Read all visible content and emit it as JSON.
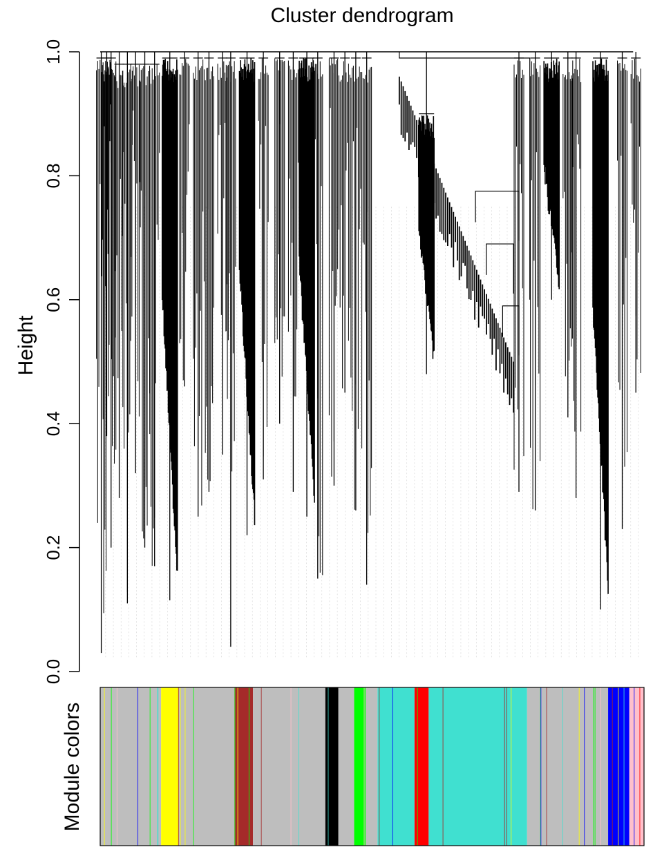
{
  "chart_data": {
    "type": "dendrogram",
    "title": "Cluster dendrogram",
    "ylabel": "Height",
    "color_bar_label": "Module colors",
    "ylim": [
      0,
      1
    ],
    "yticks": [
      "0.0",
      "0.2",
      "0.4",
      "0.6",
      "0.8",
      "1.0"
    ],
    "ytick_values": [
      0.0,
      0.2,
      0.4,
      0.6,
      0.8,
      1.0
    ],
    "module_colors": [
      {
        "color": "grey",
        "hex": "#bebebe",
        "from": 0.0,
        "to": 0.112
      },
      {
        "color": "yellow",
        "hex": "#ffff00",
        "from": 0.112,
        "to": 0.144
      },
      {
        "color": "grey",
        "hex": "#bebebe",
        "from": 0.144,
        "to": 0.247
      },
      {
        "color": "brown",
        "hex": "#a52a2a",
        "from": 0.247,
        "to": 0.281
      },
      {
        "color": "grey",
        "hex": "#bebebe",
        "from": 0.281,
        "to": 0.414
      },
      {
        "color": "black",
        "hex": "#000000",
        "from": 0.414,
        "to": 0.438
      },
      {
        "color": "grey",
        "hex": "#bebebe",
        "from": 0.438,
        "to": 0.467
      },
      {
        "color": "green",
        "hex": "#00ff00",
        "from": 0.467,
        "to": 0.488
      },
      {
        "color": "grey",
        "hex": "#bebebe",
        "from": 0.488,
        "to": 0.51
      },
      {
        "color": "turquoise",
        "hex": "#40e0d0",
        "from": 0.51,
        "to": 0.578
      },
      {
        "color": "red",
        "hex": "#ff0000",
        "from": 0.578,
        "to": 0.604
      },
      {
        "color": "turquoise",
        "hex": "#40e0d0",
        "from": 0.604,
        "to": 0.785
      },
      {
        "color": "grey",
        "hex": "#bebebe",
        "from": 0.785,
        "to": 0.934
      },
      {
        "color": "blue",
        "hex": "#0000ff",
        "from": 0.934,
        "to": 0.973
      },
      {
        "color": "pink",
        "hex": "#ffc0cb",
        "from": 0.973,
        "to": 1.0
      }
    ],
    "branches": [
      {
        "position": 0.002,
        "merge_height": 0.99,
        "min_height": 0.03,
        "dense": false
      },
      {
        "position": 0.012,
        "merge_height": 0.99,
        "min_height": 0.38,
        "dense": false
      },
      {
        "position": 0.02,
        "merge_height": 0.99,
        "min_height": 0.2,
        "dense": false
      },
      {
        "position": 0.035,
        "merge_height": 0.98,
        "min_height": 0.28,
        "dense": false
      },
      {
        "position": 0.05,
        "merge_height": 0.98,
        "min_height": 0.11,
        "dense": false
      },
      {
        "position": 0.065,
        "merge_height": 0.98,
        "min_height": 0.32,
        "dense": false
      },
      {
        "position": 0.082,
        "merge_height": 0.98,
        "min_height": 0.2,
        "dense": false
      },
      {
        "position": 0.1,
        "merge_height": 0.98,
        "min_height": 0.17,
        "dense": false
      },
      {
        "position": 0.128,
        "merge_height": 0.99,
        "min_height": 0.115,
        "dense": true
      },
      {
        "position": 0.155,
        "merge_height": 0.99,
        "min_height": 0.46,
        "dense": false
      },
      {
        "position": 0.18,
        "merge_height": 0.99,
        "min_height": 0.25,
        "dense": false
      },
      {
        "position": 0.2,
        "merge_height": 0.99,
        "min_height": 0.29,
        "dense": false
      },
      {
        "position": 0.225,
        "merge_height": 0.99,
        "min_height": 0.35,
        "dense": false
      },
      {
        "position": 0.24,
        "merge_height": 0.99,
        "min_height": 0.04,
        "dense": false
      },
      {
        "position": 0.27,
        "merge_height": 0.99,
        "min_height": 0.22,
        "dense": true
      },
      {
        "position": 0.3,
        "merge_height": 0.99,
        "min_height": 0.31,
        "dense": false
      },
      {
        "position": 0.33,
        "merge_height": 0.99,
        "min_height": 0.4,
        "dense": false
      },
      {
        "position": 0.355,
        "merge_height": 0.99,
        "min_height": 0.29,
        "dense": false
      },
      {
        "position": 0.38,
        "merge_height": 0.99,
        "min_height": 0.25,
        "dense": true
      },
      {
        "position": 0.4,
        "merge_height": 0.99,
        "min_height": 0.15,
        "dense": false
      },
      {
        "position": 0.43,
        "merge_height": 0.99,
        "min_height": 0.3,
        "dense": false
      },
      {
        "position": 0.45,
        "merge_height": 0.99,
        "min_height": 0.45,
        "dense": false
      },
      {
        "position": 0.47,
        "merge_height": 0.99,
        "min_height": 0.26,
        "dense": false
      },
      {
        "position": 0.49,
        "merge_height": 0.99,
        "min_height": 0.14,
        "dense": false
      },
      {
        "position": 0.6,
        "merge_height": 0.9,
        "min_height": 0.48,
        "dense": true
      },
      {
        "position": 0.77,
        "merge_height": 0.99,
        "min_height": 0.29,
        "dense": false
      },
      {
        "position": 0.8,
        "merge_height": 0.99,
        "min_height": 0.26,
        "dense": false
      },
      {
        "position": 0.83,
        "merge_height": 0.99,
        "min_height": 0.6,
        "dense": true
      },
      {
        "position": 0.86,
        "merge_height": 0.99,
        "min_height": 0.41,
        "dense": false
      },
      {
        "position": 0.875,
        "merge_height": 0.99,
        "min_height": 0.28,
        "dense": false
      },
      {
        "position": 0.92,
        "merge_height": 0.99,
        "min_height": 0.1,
        "dense": true
      },
      {
        "position": 0.96,
        "merge_height": 0.99,
        "min_height": 0.23,
        "dense": false
      },
      {
        "position": 0.985,
        "merge_height": 0.99,
        "min_height": 0.45,
        "dense": false
      }
    ],
    "grid": false
  }
}
